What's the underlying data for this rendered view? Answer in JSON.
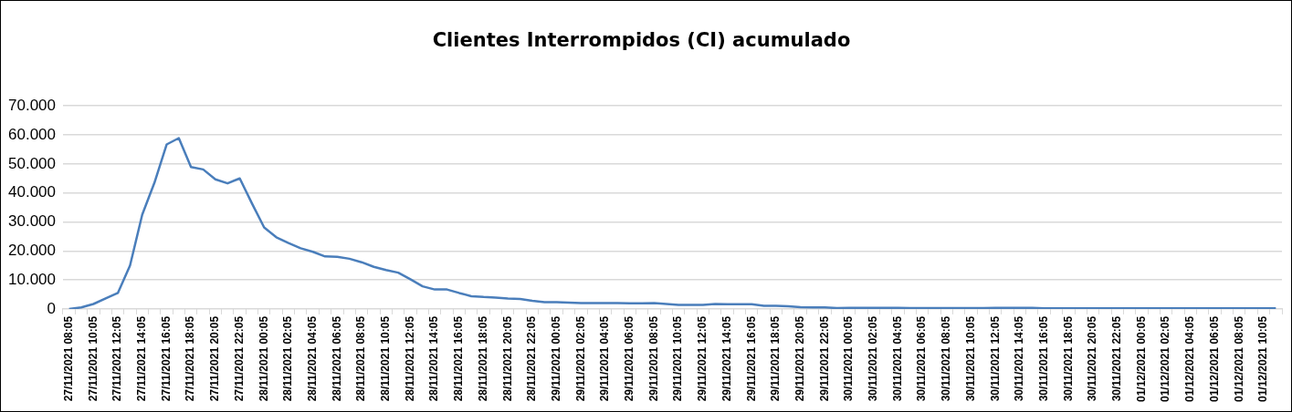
{
  "chart_data": {
    "type": "line",
    "title": "Clientes Interrompidos (CI) acumulado",
    "categories": [
      "27/11/2021 08:05",
      null,
      "27/11/2021 10:05",
      null,
      "27/11/2021 12:05",
      null,
      "27/11/2021 14:05",
      null,
      "27/11/2021 16:05",
      null,
      "27/11/2021 18:05",
      null,
      "27/11/2021 20:05",
      null,
      "27/11/2021 22:05",
      null,
      "28/11/2021 00:05",
      null,
      "28/11/2021 02:05",
      null,
      "28/11/2021 04:05",
      null,
      "28/11/2021 06:05",
      null,
      "28/11/2021 08:05",
      null,
      "28/11/2021 10:05",
      null,
      "28/11/2021 12:05",
      null,
      "28/11/2021 14:05",
      null,
      "28/11/2021 16:05",
      null,
      "28/11/2021 18:05",
      null,
      "28/11/2021 20:05",
      null,
      "28/11/2021 22:05",
      null,
      "29/11/2021 00:05",
      null,
      "29/11/2021 02:05",
      null,
      "29/11/2021 04:05",
      null,
      "29/11/2021 06:05",
      null,
      "29/11/2021 08:05",
      null,
      "29/11/2021 10:05",
      null,
      "29/11/2021 12:05",
      null,
      "29/11/2021 14:05",
      null,
      "29/11/2021 16:05",
      null,
      "29/11/2021 18:05",
      null,
      "29/11/2021 20:05",
      null,
      "29/11/2021 22:05",
      null,
      "30/11/2021 00:05",
      null,
      "30/11/2021 02:05",
      null,
      "30/11/2021 04:05",
      null,
      "30/11/2021 06:05",
      null,
      "30/11/2021 08:05",
      null,
      "30/11/2021 10:05",
      null,
      "30/11/2021 12:05",
      null,
      "30/11/2021 14:05",
      null,
      "30/11/2021 16:05",
      null,
      "30/11/2021 18:05",
      null,
      "30/11/2021 20:05",
      null,
      "30/11/2021 22:05",
      null,
      "01/12/2021 00:05",
      null,
      "01/12/2021 02:05",
      null,
      "01/12/2021 04:05",
      null,
      "01/12/2021 06:05",
      null,
      "01/12/2021 08:05",
      null,
      "01/12/2021 10:05",
      null
    ],
    "series": [
      {
        "color": "#4a7ebb",
        "values": [
          0,
          500,
          1700,
          3600,
          5500,
          15000,
          32500,
          43500,
          56700,
          58900,
          48900,
          48100,
          44700,
          43300,
          45000,
          36400,
          28100,
          24700,
          22700,
          20900,
          19700,
          18100,
          18000,
          17300,
          16100,
          14500,
          13400,
          12500,
          10200,
          7800,
          6700,
          6700,
          5500,
          4400,
          4100,
          3900,
          3600,
          3400,
          2800,
          2300,
          2300,
          2200,
          2000,
          2000,
          2000,
          2000,
          1900,
          1900,
          2000,
          1700,
          1400,
          1400,
          1400,
          1700,
          1600,
          1600,
          1600,
          1100,
          1100,
          900,
          600,
          500,
          500,
          300,
          400,
          400,
          400,
          400,
          400,
          300,
          300,
          300,
          300,
          300,
          300,
          300,
          350,
          350,
          350,
          350,
          200,
          200,
          200,
          200,
          200,
          200,
          200,
          200,
          200,
          200,
          200,
          200,
          200,
          200,
          200,
          200,
          200,
          200,
          200,
          200
        ]
      }
    ],
    "ylim": [
      0,
      70000
    ],
    "yticks": [
      {
        "value": 0,
        "label": "0"
      },
      {
        "value": 10000,
        "label": "10.000"
      },
      {
        "value": 20000,
        "label": "20.000"
      },
      {
        "value": 30000,
        "label": "30.000"
      },
      {
        "value": 40000,
        "label": "40.000"
      },
      {
        "value": 50000,
        "label": "50.000"
      },
      {
        "value": 60000,
        "label": "60.000"
      },
      {
        "value": 70000,
        "label": "70.000"
      }
    ],
    "grid": "y",
    "legend": false,
    "marker": "none",
    "line_style": "solid"
  }
}
